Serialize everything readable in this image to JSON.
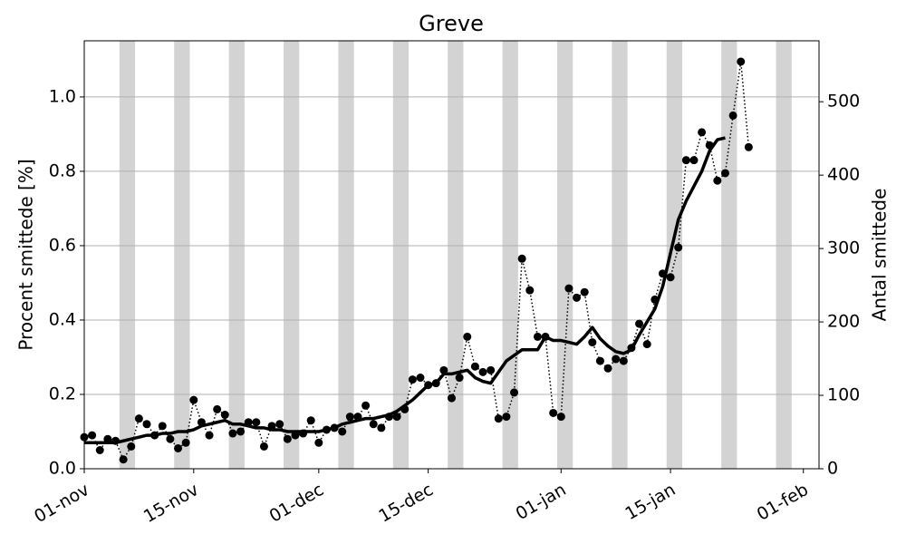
{
  "chart_data": {
    "type": "line",
    "title": "Greve",
    "ylabel": "Procent smittede [%]",
    "y2label": "Antal smittede",
    "x": [
      "11-01",
      "11-02",
      "11-03",
      "11-04",
      "11-05",
      "11-06",
      "11-07",
      "11-08",
      "11-09",
      "11-10",
      "11-11",
      "11-12",
      "11-13",
      "11-14",
      "11-15",
      "11-16",
      "11-17",
      "11-18",
      "11-19",
      "11-20",
      "11-21",
      "11-22",
      "11-23",
      "11-24",
      "11-25",
      "11-26",
      "11-27",
      "11-28",
      "11-29",
      "11-30",
      "12-01",
      "12-02",
      "12-03",
      "12-04",
      "12-05",
      "12-06",
      "12-07",
      "12-08",
      "12-09",
      "12-10",
      "12-11",
      "12-12",
      "12-13",
      "12-14",
      "12-15",
      "12-16",
      "12-17",
      "12-18",
      "12-19",
      "12-20",
      "12-21",
      "12-22",
      "12-23",
      "12-24",
      "12-25",
      "12-26",
      "12-27",
      "12-28",
      "12-29",
      "12-30",
      "12-31",
      "01-01",
      "01-02",
      "01-03",
      "01-04",
      "01-05",
      "01-06",
      "01-07",
      "01-08",
      "01-09",
      "01-10",
      "01-11",
      "01-12",
      "01-13",
      "01-14",
      "01-15",
      "01-16",
      "01-17",
      "01-18",
      "01-19",
      "01-20",
      "01-21",
      "01-22",
      "01-23",
      "01-24",
      "01-25"
    ],
    "series": [
      {
        "color": "#000000",
        "linestyle": "dotted",
        "marker": true,
        "values": [
          0.085,
          0.09,
          0.05,
          0.08,
          0.075,
          0.025,
          0.06,
          0.135,
          0.12,
          0.09,
          0.115,
          0.08,
          0.055,
          0.07,
          0.185,
          0.125,
          0.09,
          0.16,
          0.145,
          0.095,
          0.1,
          0.125,
          0.125,
          0.06,
          0.115,
          0.12,
          0.08,
          0.09,
          0.095,
          0.13,
          0.07,
          0.105,
          0.11,
          0.1,
          0.14,
          0.14,
          0.17,
          0.12,
          0.11,
          0.14,
          0.14,
          0.16,
          0.24,
          0.245,
          0.225,
          0.23,
          0.265,
          0.19,
          0.245,
          0.355,
          0.275,
          0.26,
          0.265,
          0.135,
          0.14,
          0.205,
          0.565,
          0.48,
          0.355,
          0.355,
          0.15,
          0.14,
          0.485,
          0.46,
          0.475,
          0.34,
          0.29,
          0.27,
          0.295,
          0.29,
          0.325,
          0.39,
          0.335,
          0.455,
          0.525,
          0.515,
          0.595,
          0.83,
          0.83,
          0.905,
          0.87,
          0.775,
          0.795,
          0.95,
          1.095,
          0.865
        ]
      },
      {
        "color": "#000000",
        "linestyle": "solid",
        "marker": false,
        "values": [
          0.07,
          0.07,
          0.07,
          0.07,
          0.07,
          0.075,
          0.08,
          0.085,
          0.09,
          0.09,
          0.095,
          0.095,
          0.1,
          0.1,
          0.105,
          0.115,
          0.12,
          0.125,
          0.13,
          0.12,
          0.12,
          0.115,
          0.11,
          0.11,
          0.105,
          0.105,
          0.1,
          0.1,
          0.1,
          0.1,
          0.1,
          0.105,
          0.11,
          0.12,
          0.125,
          0.13,
          0.135,
          0.135,
          0.14,
          0.145,
          0.155,
          0.17,
          0.185,
          0.205,
          0.225,
          0.23,
          0.255,
          0.255,
          0.26,
          0.265,
          0.245,
          0.235,
          0.23,
          0.26,
          0.29,
          0.305,
          0.32,
          0.32,
          0.32,
          0.355,
          0.345,
          0.345,
          0.34,
          0.335,
          0.355,
          0.38,
          0.35,
          0.33,
          0.315,
          0.31,
          0.32,
          0.36,
          0.395,
          0.43,
          0.49,
          0.58,
          0.67,
          0.72,
          0.76,
          0.8,
          0.855,
          0.885,
          0.89,
          null,
          null,
          null
        ]
      }
    ],
    "xlim": [
      "11-01",
      "02-03"
    ],
    "xticks": [
      {
        "value": "11-01",
        "label": "01-nov"
      },
      {
        "value": "11-15",
        "label": "15-nov"
      },
      {
        "value": "12-01",
        "label": "01-dec"
      },
      {
        "value": "12-15",
        "label": "15-dec"
      },
      {
        "value": "01-01",
        "label": "01-jan"
      },
      {
        "value": "01-15",
        "label": "15-jan"
      },
      {
        "value": "02-01",
        "label": "01-feb"
      }
    ],
    "ylim": [
      0,
      1.151
    ],
    "yticks": [
      {
        "value": 0,
        "label": "0.0"
      },
      0.2,
      0.4,
      0.6,
      0.8,
      {
        "value": 1,
        "label": "1.0"
      }
    ],
    "y2lim": [
      0,
      583
    ],
    "y2ticks": [
      0,
      100,
      200,
      300,
      400,
      500
    ],
    "grid": true
  }
}
